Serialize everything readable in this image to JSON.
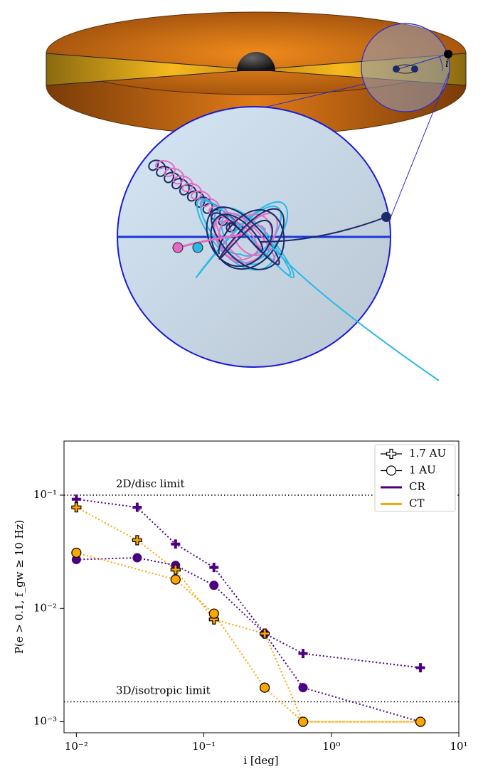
{
  "illustration": {
    "inclination_label": "i"
  },
  "chart_data": {
    "type": "line",
    "log_x": true,
    "log_y": true,
    "xlabel": "i [deg]",
    "ylabel": "P(e > 0.1, f_gw ≥ 10 Hz)",
    "xlim": [
      0.008,
      10
    ],
    "ylim": [
      0.0008,
      0.3
    ],
    "xticks": [
      {
        "value": 0.01,
        "label": "10⁻²"
      },
      {
        "value": 0.1,
        "label": "10⁻¹"
      },
      {
        "value": 1,
        "label": "10⁰"
      },
      {
        "value": 10,
        "label": "10¹"
      }
    ],
    "yticks": [
      {
        "value": 0.001,
        "label": "10⁻³"
      },
      {
        "value": 0.01,
        "label": "10⁻²"
      },
      {
        "value": 0.1,
        "label": "10⁻¹"
      }
    ],
    "reference_lines": [
      {
        "value": 0.1,
        "label": "2D/disc limit"
      },
      {
        "value": 0.0015,
        "label": "3D/isotropic limit"
      }
    ],
    "marker_legend": [
      {
        "label": "1.7 AU",
        "shape": "plus"
      },
      {
        "label": "1 AU",
        "shape": "circle"
      }
    ],
    "color_legend": [
      {
        "label": "CR",
        "color": "#4b0082"
      },
      {
        "label": "CT",
        "color": "#ffa500"
      }
    ],
    "legend_position": "upper right",
    "series": [
      {
        "group": "CR",
        "marker": "1.7 AU",
        "edgecolor": "none",
        "x": [
          0.01,
          0.03,
          0.06,
          0.12,
          0.3,
          0.6,
          5
        ],
        "values": [
          0.092,
          0.078,
          0.037,
          0.023,
          0.006,
          0.004,
          0.003
        ]
      },
      {
        "group": "CR",
        "marker": "1 AU",
        "edgecolor": "none",
        "x": [
          0.01,
          0.03,
          0.06,
          0.12,
          0.3,
          0.6,
          5
        ],
        "values": [
          0.027,
          0.028,
          0.024,
          0.016,
          0.006,
          0.002,
          0.001
        ]
      },
      {
        "group": "CT",
        "marker": "1.7 AU",
        "edgecolor": "#000000",
        "x": [
          0.01,
          0.03,
          0.06,
          0.12,
          0.3,
          0.6,
          5
        ],
        "values": [
          0.078,
          0.04,
          0.022,
          0.008,
          0.006,
          0.001,
          0.001
        ]
      },
      {
        "group": "CT",
        "marker": "1 AU",
        "edgecolor": "#000000",
        "x": [
          0.01,
          0.06,
          0.12,
          0.3,
          0.6,
          5
        ],
        "values": [
          0.031,
          0.018,
          0.009,
          0.002,
          0.001,
          0.001
        ]
      }
    ]
  }
}
